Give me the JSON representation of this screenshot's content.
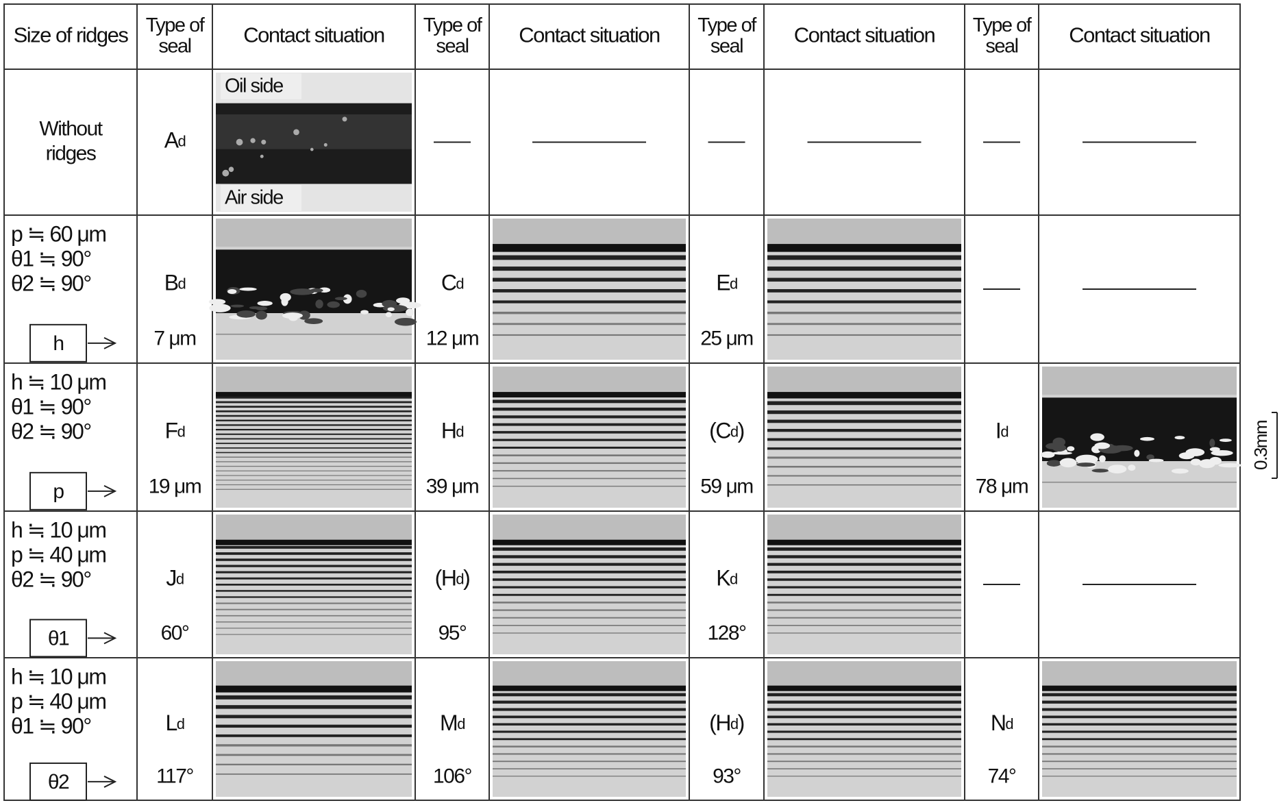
{
  "header": [
    [
      "Size of ridges"
    ],
    [
      "Type of",
      "seal"
    ],
    [
      "Contact situation"
    ],
    [
      "Type of",
      "seal"
    ],
    [
      "Contact situation"
    ],
    [
      "Type of",
      "seal"
    ],
    [
      "Contact situation"
    ],
    [
      "Type of",
      "seal"
    ],
    [
      "Contact situation"
    ]
  ],
  "rows": [
    {
      "label": [
        "Without",
        "ridges"
      ],
      "cells": [
        {
          "seal": [
            "A",
            "d"
          ],
          "oil": "Oil side",
          "air": "Air side"
        },
        null,
        null,
        null
      ]
    },
    {
      "label": [
        "p ≒ 60 μm",
        "θ1 ≒ 90°",
        "θ2 ≒ 90°"
      ],
      "variable": "h",
      "cells": [
        {
          "seal": [
            "B",
            "d"
          ],
          "value": "7 μm"
        },
        {
          "seal": [
            "C",
            "d"
          ],
          "value": "12 μm"
        },
        {
          "seal": [
            "E",
            "d"
          ],
          "value": "25 μm"
        },
        null
      ]
    },
    {
      "label": [
        "h ≒ 10 μm",
        "θ1 ≒ 90°",
        "θ2 ≒ 90°"
      ],
      "variable": "p",
      "cells": [
        {
          "seal": [
            "F",
            "d"
          ],
          "value": "19 μm"
        },
        {
          "seal": [
            "H",
            "d"
          ],
          "value": "39 μm"
        },
        {
          "seal": [
            "(C",
            "d",
            ")"
          ],
          "value": "59 μm"
        },
        {
          "seal": [
            "I",
            "d"
          ],
          "value": "78 μm"
        }
      ]
    },
    {
      "label": [
        "h ≒ 10 μm",
        "p ≒ 40 μm",
        "θ2 ≒ 90°"
      ],
      "variable": "θ1",
      "cells": [
        {
          "seal": [
            "J",
            "d"
          ],
          "value": "60°"
        },
        {
          "seal": [
            "(H",
            "d",
            ")"
          ],
          "value": "95°"
        },
        {
          "seal": [
            "K",
            "d"
          ],
          "value": "128°"
        },
        null
      ]
    },
    {
      "label": [
        "h ≒ 10 μm",
        "p ≒ 40 μm",
        "θ1 ≒ 90°"
      ],
      "variable": "θ2",
      "cells": [
        {
          "seal": [
            "L",
            "d"
          ],
          "value": "117°"
        },
        {
          "seal": [
            "M",
            "d"
          ],
          "value": "106°"
        },
        {
          "seal": [
            "(H",
            "d",
            ")"
          ],
          "value": "93°"
        },
        {
          "seal": [
            "N",
            "d"
          ],
          "value": "74°"
        }
      ]
    }
  ],
  "scale": "0.3mm"
}
